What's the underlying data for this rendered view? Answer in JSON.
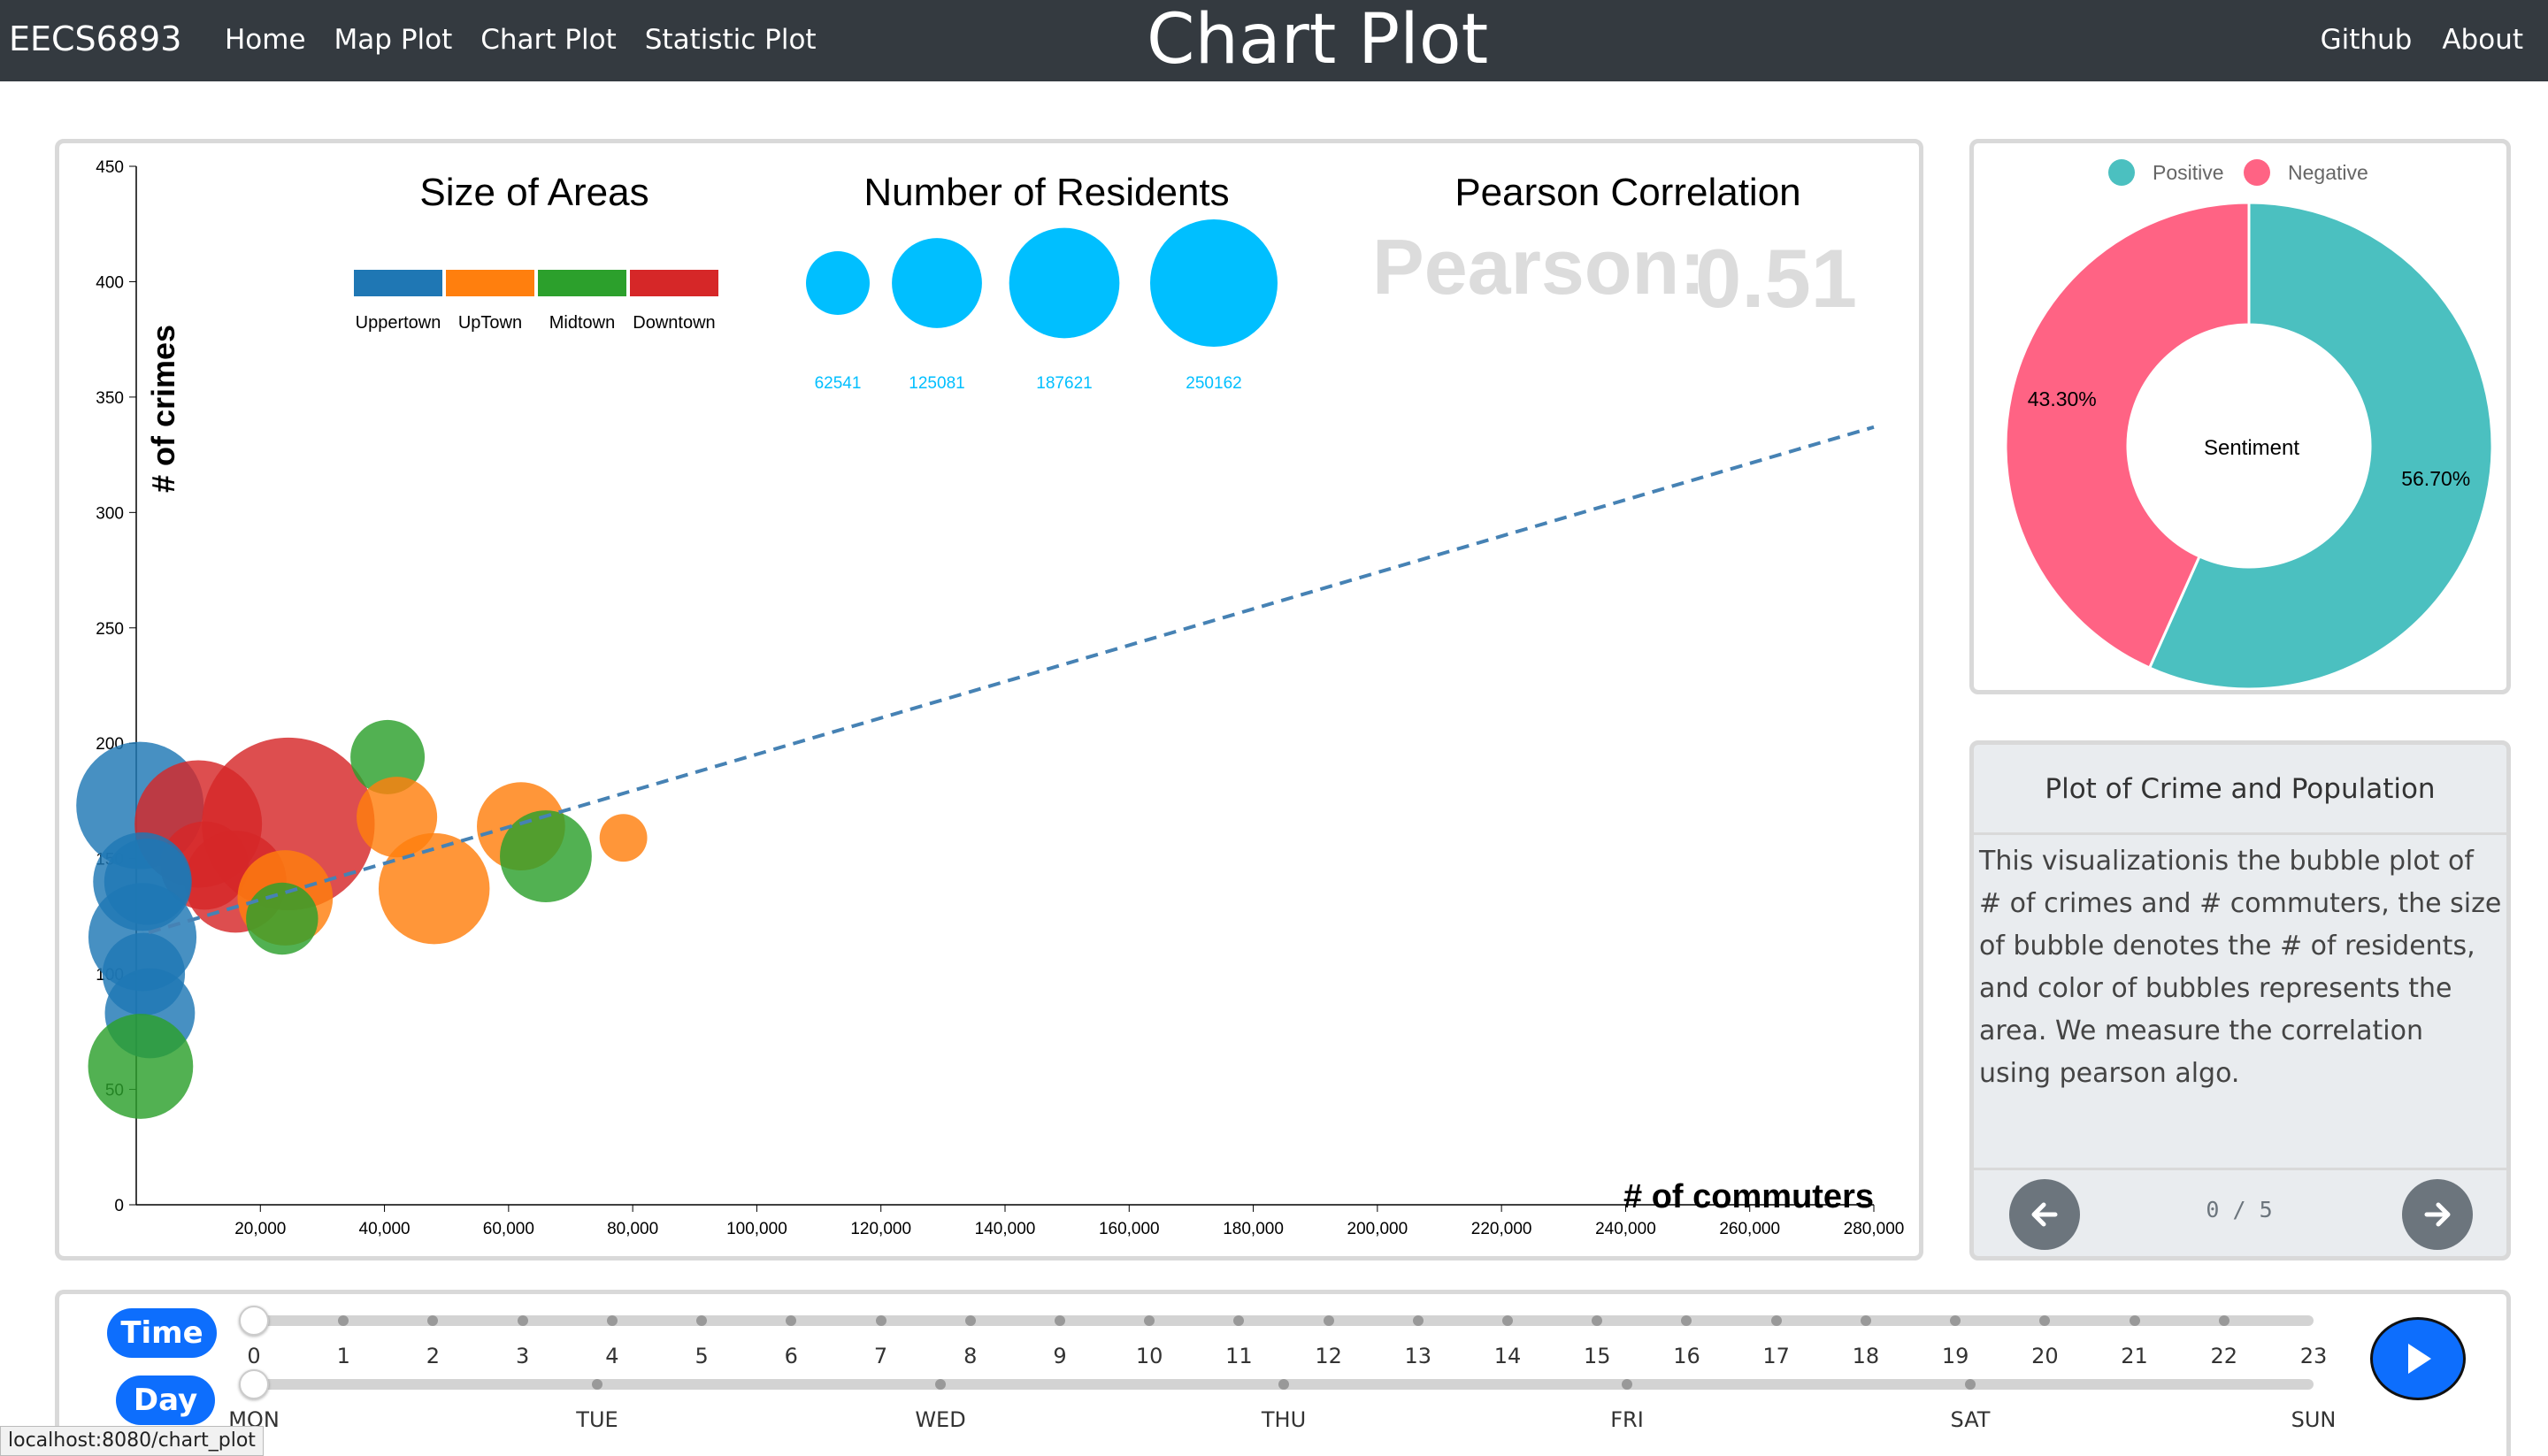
{
  "nav": {
    "brand": "EECS6893",
    "links": [
      "Home",
      "Map Plot",
      "Chart Plot",
      "Statistic Plot"
    ],
    "title": "Chart Plot",
    "right_links": [
      "Github",
      "About"
    ]
  },
  "legends": {
    "areas_title": "Size of Areas",
    "areas": [
      {
        "name": "Uppertown",
        "color": "#1f77b4"
      },
      {
        "name": "UpTown",
        "color": "#ff7f0e"
      },
      {
        "name": "Midtown",
        "color": "#2ca02c"
      },
      {
        "name": "Downtown",
        "color": "#d62728"
      }
    ],
    "residents_title": "Number of Residents",
    "residents": [
      62541,
      125081,
      187621,
      250162
    ],
    "residents_color": "#00bfff",
    "pearson_title": "Pearson Correlation",
    "pearson_label": "Pearson:",
    "pearson_value": "0.51"
  },
  "chart_data": [
    {
      "type": "scatter",
      "title": "",
      "xlabel": "# of commuters",
      "ylabel": "# of crimes",
      "xlim": [
        0,
        280000
      ],
      "ylim": [
        0,
        450
      ],
      "x_ticks": [
        "20,000",
        "40,000",
        "60,000",
        "80,000",
        "100,000",
        "120,000",
        "140,000",
        "160,000",
        "180,000",
        "200,000",
        "220,000",
        "240,000",
        "260,000",
        "280,000"
      ],
      "y_ticks": [
        "0",
        "50",
        "100",
        "150",
        "200",
        "250",
        "300",
        "350",
        "400",
        "450"
      ],
      "trendline": {
        "x": [
          2000,
          280000
        ],
        "y": [
          118,
          337
        ],
        "color": "#4682b4",
        "style": "dashed"
      },
      "points": [
        {
          "x": 600,
          "y": 173,
          "residents": 250162,
          "area": "Uppertown"
        },
        {
          "x": 10000,
          "y": 165,
          "residents": 250162,
          "area": "Downtown"
        },
        {
          "x": 24500,
          "y": 165,
          "residents": 460000,
          "area": "Downtown"
        },
        {
          "x": 40500,
          "y": 194,
          "residents": 85000,
          "area": "Midtown"
        },
        {
          "x": 42000,
          "y": 168,
          "residents": 100000,
          "area": "UpTown"
        },
        {
          "x": 48000,
          "y": 137,
          "residents": 190000,
          "area": "UpTown"
        },
        {
          "x": 62000,
          "y": 164,
          "residents": 120000,
          "area": "UpTown"
        },
        {
          "x": 66000,
          "y": 151,
          "residents": 130000,
          "area": "Midtown"
        },
        {
          "x": 78500,
          "y": 159,
          "residents": 35000,
          "area": "UpTown"
        },
        {
          "x": 11000,
          "y": 147,
          "residents": 120000,
          "area": "Downtown"
        },
        {
          "x": 16000,
          "y": 140,
          "residents": 160000,
          "area": "Downtown"
        },
        {
          "x": 24000,
          "y": 133,
          "residents": 140000,
          "area": "UpTown"
        },
        {
          "x": 23500,
          "y": 124,
          "residents": 80000,
          "area": "Midtown"
        },
        {
          "x": 1000,
          "y": 140,
          "residents": 150000,
          "area": "Uppertown"
        },
        {
          "x": 1800,
          "y": 140,
          "residents": 115000,
          "area": "Uppertown"
        },
        {
          "x": 1000,
          "y": 116,
          "residents": 180000,
          "area": "Uppertown"
        },
        {
          "x": 1200,
          "y": 100,
          "residents": 105000,
          "area": "Uppertown"
        },
        {
          "x": 2200,
          "y": 83,
          "residents": 125000,
          "area": "Uppertown"
        },
        {
          "x": 700,
          "y": 60,
          "residents": 170000,
          "area": "Midtown"
        }
      ]
    },
    {
      "type": "pie",
      "title": "",
      "center_label": "Sentiment",
      "slices": [
        {
          "name": "Positive",
          "value": 56.7,
          "label": "56.70%",
          "color": "#4bc0c0"
        },
        {
          "name": "Negative",
          "value": 43.3,
          "label": "43.30%",
          "color": "#ff6384"
        }
      ]
    }
  ],
  "info": {
    "title": "Plot of Crime and Population",
    "body": "This visualizationis the bubble plot of # of crimes and # commuters, the size of bubble denotes the # of residents, and color of bubbles represents the area. We measure the correlation using pearson algo.",
    "pager": "0 / 5"
  },
  "sliders": {
    "time_label": "Time",
    "day_label": "Day",
    "hours": [
      "0",
      "1",
      "2",
      "3",
      "4",
      "5",
      "6",
      "7",
      "8",
      "9",
      "10",
      "11",
      "12",
      "13",
      "14",
      "15",
      "16",
      "17",
      "18",
      "19",
      "20",
      "21",
      "22",
      "23"
    ],
    "days": [
      "MON",
      "TUE",
      "WED",
      "THU",
      "FRI",
      "SAT",
      "SUN"
    ],
    "time_value": "0",
    "day_value": "MON"
  },
  "status_url": "localhost:8080/chart_plot"
}
